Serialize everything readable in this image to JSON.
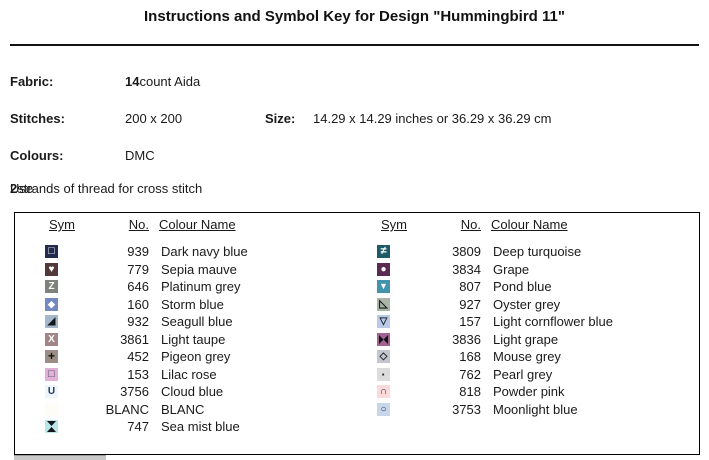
{
  "title": "Instructions and Symbol Key for Design \"Hummingbird 11\"",
  "info": {
    "fabric_label": "Fabric:",
    "fabric_count": "14",
    "fabric_rest": " count Aida",
    "stitches_label": "Stitches:",
    "stitches_value": "200 x 200",
    "size_label": "Size:",
    "size_value": "14.29 x 14.29 inches or 36.29 x 36.29 cm",
    "colours_label": "Colours:",
    "colours_value": "DMC",
    "strands_prefix": "Use ",
    "strands_count": "2",
    "strands_suffix": " strands of thread for cross stitch"
  },
  "key_table": {
    "headers": [
      "Sym",
      "No.",
      "Colour Name"
    ],
    "left_rows": [
      {
        "symbol": "square-outline",
        "bg": "#232c4e",
        "fg": "#ffffff",
        "no": "939",
        "name": "Dark navy blue"
      },
      {
        "symbol": "heart",
        "bg": "#523a3c",
        "fg": "#ffffff",
        "no": "779",
        "name": "Sepia mauve"
      },
      {
        "symbol": "letter-z",
        "bg": "#7e827b",
        "fg": "#ffffff",
        "no": "646",
        "name": "Platinum grey"
      },
      {
        "symbol": "diamond-filled",
        "bg": "#7589c1",
        "fg": "#ffffff",
        "no": "160",
        "name": "Storm blue"
      },
      {
        "symbol": "triangle-lower-right",
        "bg": "#a5b7cb",
        "fg": "#16181c",
        "no": "932",
        "name": "Seagull blue"
      },
      {
        "symbol": "letter-x",
        "bg": "#a28585",
        "fg": "#ffffff",
        "no": "3861",
        "name": "Light taupe"
      },
      {
        "symbol": "plus",
        "bg": "#9a8e86",
        "fg": "#15130f",
        "no": "452",
        "name": "Pigeon grey"
      },
      {
        "symbol": "square-outline",
        "bg": "#e1b0d8",
        "fg": "#4a4a55",
        "no": "153",
        "name": "Lilac rose"
      },
      {
        "symbol": "letter-u",
        "bg": "#eef6fb",
        "fg": "#233a66",
        "no": "3756",
        "name": "Cloud blue"
      },
      {
        "symbol": "blank",
        "bg": "#fdfcf5",
        "fg": "#000000",
        "no": "BLANC",
        "name": "BLANC"
      },
      {
        "symbol": "hourglass",
        "bg": "#b9e6e7",
        "fg": "#15151d",
        "no": "747",
        "name": "Sea mist blue"
      }
    ],
    "right_rows": [
      {
        "symbol": "not-equal",
        "bg": "#1d5c67",
        "fg": "#ffffff",
        "no": "3809",
        "name": "Deep turquoise"
      },
      {
        "symbol": "circle-filled",
        "bg": "#5b2a51",
        "fg": "#ffffff",
        "no": "3834",
        "name": "Grape"
      },
      {
        "symbol": "triangle-down-filled",
        "bg": "#4493ae",
        "fg": "#ffffff",
        "no": "807",
        "name": "Pond blue"
      },
      {
        "symbol": "triangle-lower-left-outline",
        "bg": "#abb5a7",
        "fg": "#15181a",
        "no": "927",
        "name": "Oyster grey"
      },
      {
        "symbol": "triangle-down-outline",
        "bg": "#b8cae7",
        "fg": "#20242c",
        "no": "157",
        "name": "Light cornflower blue"
      },
      {
        "symbol": "bowtie",
        "bg": "#a1638f",
        "fg": "#131318",
        "no": "3836",
        "name": "Light grape"
      },
      {
        "symbol": "diamond-outline",
        "bg": "#c3c6cc",
        "fg": "#23252a",
        "no": "168",
        "name": "Mouse grey"
      },
      {
        "symbol": "dot",
        "bg": "#dcdcdc",
        "fg": "#26262a",
        "no": "762",
        "name": "Pearl grey"
      },
      {
        "symbol": "intersection",
        "bg": "#fbdadb",
        "fg": "#25325c",
        "no": "818",
        "name": "Powder pink"
      },
      {
        "symbol": "circle-outline",
        "bg": "#c7d6e9",
        "fg": "#23252c",
        "no": "3753",
        "name": "Moonlight blue"
      }
    ]
  }
}
